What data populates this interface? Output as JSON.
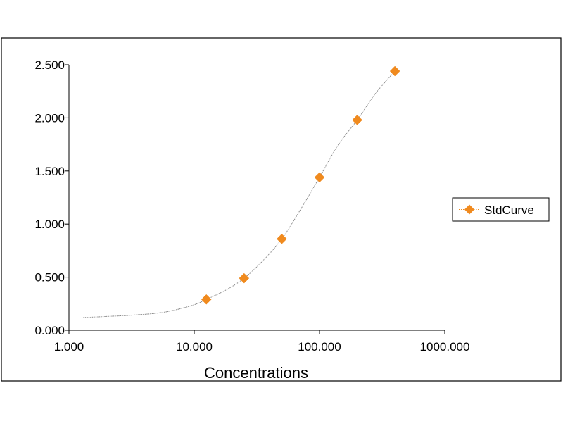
{
  "chart_data": {
    "type": "scatter",
    "title": "",
    "xlabel": "Concentrations",
    "ylabel": "",
    "x_scale": "log",
    "xlim": [
      1,
      1000
    ],
    "ylim": [
      0,
      2.5
    ],
    "x_ticks": [
      {
        "value": 1,
        "label": "1.000"
      },
      {
        "value": 10,
        "label": "10.000"
      },
      {
        "value": 100,
        "label": "100.000"
      },
      {
        "value": 1000,
        "label": "1000.000"
      }
    ],
    "y_ticks": [
      {
        "value": 0,
        "label": "0.000"
      },
      {
        "value": 0.5,
        "label": "0.500"
      },
      {
        "value": 1,
        "label": "1.000"
      },
      {
        "value": 1.5,
        "label": "1.500"
      },
      {
        "value": 2,
        "label": "2.000"
      },
      {
        "value": 2.5,
        "label": "2.500"
      }
    ],
    "grid": false,
    "legend_position": "right",
    "series": [
      {
        "name": "StdCurve",
        "color": "#F08A1E",
        "marker": "diamond",
        "x": [
          12.5,
          25,
          50,
          100,
          200,
          400
        ],
        "y": [
          0.29,
          0.49,
          0.86,
          1.44,
          1.98,
          2.44
        ]
      }
    ],
    "fit_curve": {
      "color": "#8a8a8a",
      "x": [
        1.3,
        2,
        3,
        5,
        7,
        10,
        12.5,
        18,
        25,
        35,
        50,
        70,
        100,
        140,
        200,
        280,
        400
      ],
      "y": [
        0.12,
        0.13,
        0.14,
        0.16,
        0.19,
        0.24,
        0.29,
        0.38,
        0.49,
        0.65,
        0.86,
        1.13,
        1.44,
        1.74,
        1.98,
        2.23,
        2.44
      ]
    }
  }
}
